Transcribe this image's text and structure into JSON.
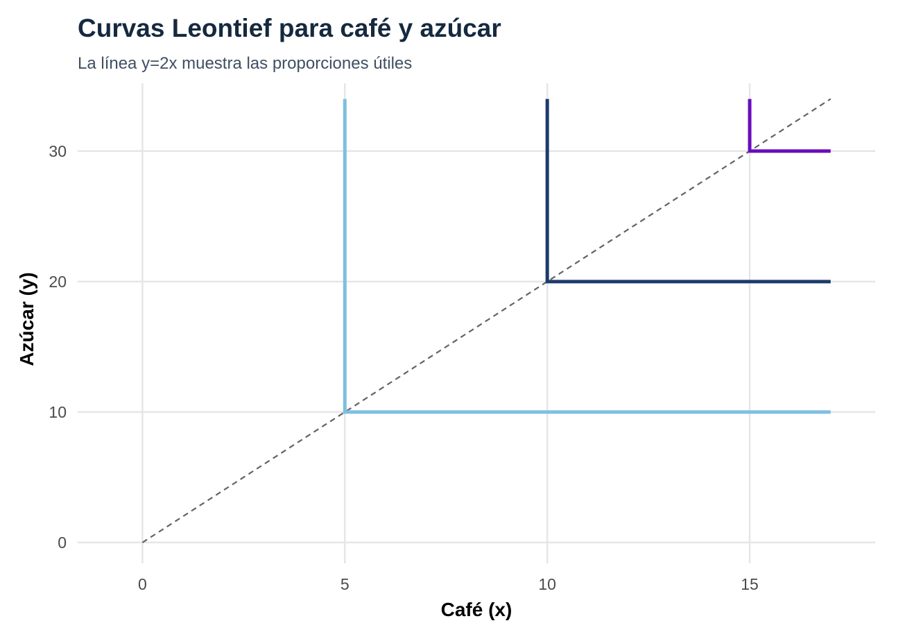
{
  "chart_data": {
    "type": "line",
    "title": "Curvas Leontief para café y azúcar",
    "subtitle": "La línea y=2x muestra las proporciones útiles",
    "xlabel": "Café (x)",
    "ylabel": "Azúcar (y)",
    "xlim": [
      -1.6,
      18.1
    ],
    "ylim": [
      -1.6,
      35.2
    ],
    "x_ticks": [
      0,
      5,
      10,
      15
    ],
    "y_ticks": [
      0,
      10,
      20,
      30
    ],
    "grid": true,
    "legend": "none",
    "reference_line": {
      "x": [
        0,
        17
      ],
      "y": [
        0,
        34
      ],
      "color": "#5f6368",
      "style": "dashed"
    },
    "series": [
      {
        "color": "#7fbfdf",
        "x": [
          5,
          5,
          17
        ],
        "y": [
          34,
          10,
          10
        ]
      },
      {
        "color": "#1d3a6b",
        "x": [
          10,
          10,
          17
        ],
        "y": [
          34,
          20,
          20
        ]
      },
      {
        "color": "#6a0dbd",
        "x": [
          15,
          15,
          17
        ],
        "y": [
          34,
          30,
          30
        ]
      }
    ]
  }
}
